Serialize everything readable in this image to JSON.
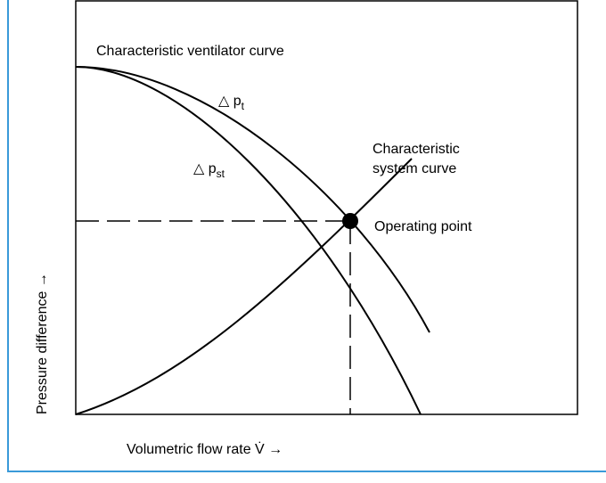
{
  "labels": {
    "ventilator_curve": "Characteristic ventilator curve",
    "pt": {
      "symbol": "△ p",
      "subscript": "t"
    },
    "pst": {
      "symbol": "△ p",
      "subscript": "st"
    },
    "system_curve_line1": "Characteristic",
    "system_curve_line2": "system curve",
    "operating_point": "Operating point",
    "y_axis": "Pressure difference →",
    "x_axis": "Volumetric flow rate  V̇ →"
  }
}
